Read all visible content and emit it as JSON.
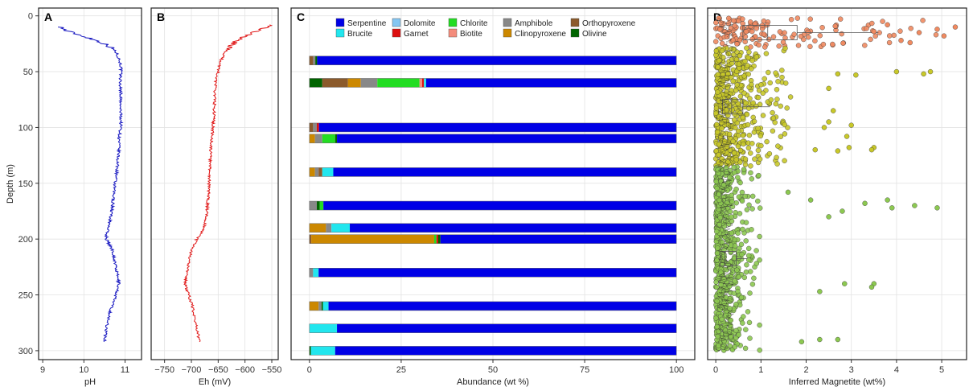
{
  "figure": {
    "width": 1210,
    "height": 486
  },
  "chart_data": [
    {
      "panel": "A",
      "type": "line",
      "xlabel": "pH",
      "ylabel": "Depth (m)",
      "xlim": [
        8.9,
        11.4
      ],
      "ylim": [
        308,
        -7
      ],
      "xticks": [
        "9",
        "10",
        "11"
      ],
      "yticks": [
        "0",
        "50",
        "100",
        "150",
        "200",
        "250",
        "300"
      ],
      "series": [
        {
          "color": "#1515c0",
          "depth": [
            10,
            13,
            16,
            19,
            22,
            25,
            28,
            31,
            34,
            38,
            45,
            50,
            60,
            70,
            80,
            90,
            100,
            110,
            120,
            130,
            140,
            150,
            160,
            170,
            180,
            190,
            195,
            200,
            205,
            210,
            220,
            230,
            240,
            250,
            260,
            270,
            280,
            292
          ],
          "values": [
            9.45,
            9.55,
            9.8,
            10.05,
            10.3,
            10.5,
            10.65,
            10.75,
            10.8,
            10.85,
            10.9,
            10.9,
            10.88,
            10.9,
            10.88,
            10.9,
            10.9,
            10.85,
            10.85,
            10.82,
            10.8,
            10.75,
            10.72,
            10.7,
            10.65,
            10.6,
            10.55,
            10.55,
            10.62,
            10.7,
            10.75,
            10.8,
            10.85,
            10.78,
            10.68,
            10.6,
            10.55,
            10.5
          ]
        }
      ]
    },
    {
      "panel": "B",
      "type": "line",
      "xlabel": "Eh (mV)",
      "xlim": [
        -775,
        -538
      ],
      "ylim": [
        308,
        -7
      ],
      "xticks": [
        "−750",
        "−700",
        "−650",
        "−600",
        "−550"
      ],
      "series": [
        {
          "color": "#e01515",
          "depth": [
            8,
            10,
            12,
            15,
            18,
            22,
            26,
            30,
            35,
            40,
            50,
            60,
            70,
            80,
            90,
            100,
            110,
            120,
            130,
            140,
            150,
            160,
            170,
            180,
            190,
            195,
            200,
            210,
            220,
            230,
            240,
            250,
            260,
            270,
            280,
            292
          ],
          "values": [
            -548,
            -555,
            -570,
            -585,
            -600,
            -615,
            -625,
            -632,
            -640,
            -645,
            -650,
            -655,
            -656,
            -657,
            -658,
            -660,
            -662,
            -664,
            -665,
            -666,
            -667,
            -668,
            -670,
            -672,
            -676,
            -682,
            -690,
            -700,
            -705,
            -708,
            -712,
            -705,
            -698,
            -694,
            -690,
            -685
          ]
        }
      ]
    },
    {
      "panel": "C",
      "type": "bar",
      "orientation": "horizontal",
      "stacked": true,
      "xlabel": "Abundance (wt %)",
      "xlim": [
        -5,
        105
      ],
      "ylim": [
        308,
        -7
      ],
      "xticks": [
        "0",
        "25",
        "50",
        "75",
        "100"
      ],
      "legend": {
        "position": "top-center",
        "columns": 4
      },
      "minerals": [
        {
          "name": "Serpentine",
          "color": "#0000e6"
        },
        {
          "name": "Brucite",
          "color": "#22e6ee"
        },
        {
          "name": "Dolomite",
          "color": "#84c6f2"
        },
        {
          "name": "Garnet",
          "color": "#dd1010"
        },
        {
          "name": "Chlorite",
          "color": "#22dd22"
        },
        {
          "name": "Biotite",
          "color": "#f48c7c"
        },
        {
          "name": "Amphibole",
          "color": "#888888"
        },
        {
          "name": "Clinopyroxene",
          "color": "#cc8800"
        },
        {
          "name": "Orthopyroxene",
          "color": "#8b5a2b"
        },
        {
          "name": "Olivine",
          "color": "#006400"
        }
      ],
      "samples": [
        {
          "depth": 40,
          "parts": [
            [
              "Orthopyroxene",
              1
            ],
            [
              "Amphibole",
              0.6
            ],
            [
              "Olivine",
              0.5
            ],
            [
              "Serpentine",
              97.9
            ]
          ]
        },
        {
          "depth": 60,
          "parts": [
            [
              "Olivine",
              3.5
            ],
            [
              "Orthopyroxene",
              7
            ],
            [
              "Clinopyroxene",
              3.5
            ],
            [
              "Amphibole",
              4.5
            ],
            [
              "Chlorite",
              11.5
            ],
            [
              "Biotite",
              0.7
            ],
            [
              "Garnet",
              0.5
            ],
            [
              "Brucite",
              0.6
            ],
            [
              "Serpentine",
              68.2
            ]
          ]
        },
        {
          "depth": 100,
          "parts": [
            [
              "Orthopyroxene",
              1
            ],
            [
              "Amphibole",
              1
            ],
            [
              "Garnet",
              0.6
            ],
            [
              "Serpentine",
              97.4
            ]
          ]
        },
        {
          "depth": 110,
          "parts": [
            [
              "Clinopyroxene",
              1.5
            ],
            [
              "Amphibole",
              2
            ],
            [
              "Chlorite",
              3.5
            ],
            [
              "Olivine",
              0.5
            ],
            [
              "Serpentine",
              92.5
            ]
          ]
        },
        {
          "depth": 140,
          "parts": [
            [
              "Clinopyroxene",
              1.5
            ],
            [
              "Amphibole",
              1
            ],
            [
              "Orthopyroxene",
              1
            ],
            [
              "Brucite",
              3
            ],
            [
              "Serpentine",
              93.5
            ]
          ]
        },
        {
          "depth": 170,
          "parts": [
            [
              "Amphibole",
              2
            ],
            [
              "Olivine",
              0.8
            ],
            [
              "Chlorite",
              1
            ],
            [
              "Serpentine",
              96.2
            ]
          ]
        },
        {
          "depth": 190,
          "parts": [
            [
              "Clinopyroxene",
              4.5
            ],
            [
              "Amphibole",
              1.5
            ],
            [
              "Brucite",
              5
            ],
            [
              "Serpentine",
              89
            ]
          ]
        },
        {
          "depth": 200,
          "parts": [
            [
              "Orthopyroxene",
              0.5
            ],
            [
              "Clinopyroxene",
              33.5
            ],
            [
              "Chlorite",
              0.6
            ],
            [
              "Garnet",
              0.5
            ],
            [
              "Olivine",
              0.6
            ],
            [
              "Serpentine",
              64.3
            ]
          ]
        },
        {
          "depth": 230,
          "parts": [
            [
              "Amphibole",
              1
            ],
            [
              "Brucite",
              1.5
            ],
            [
              "Serpentine",
              97.5
            ]
          ]
        },
        {
          "depth": 260,
          "parts": [
            [
              "Clinopyroxene",
              2.5
            ],
            [
              "Amphibole",
              0.8
            ],
            [
              "Olivine",
              0.4
            ],
            [
              "Brucite",
              1.5
            ],
            [
              "Serpentine",
              94.8
            ]
          ]
        },
        {
          "depth": 280,
          "parts": [
            [
              "Brucite",
              7.5
            ],
            [
              "Serpentine",
              92.5
            ]
          ]
        },
        {
          "depth": 300,
          "parts": [
            [
              "Olivine",
              0.4
            ],
            [
              "Brucite",
              6.6
            ],
            [
              "Serpentine",
              93
            ]
          ]
        }
      ]
    },
    {
      "panel": "D",
      "type": "scatter",
      "xlabel": "Inferred Magnetite (wt%)",
      "xlim": [
        -0.18,
        5.55
      ],
      "ylim": [
        308,
        -7
      ],
      "xticks": [
        "0",
        "1",
        "2",
        "3",
        "4",
        "5"
      ],
      "zones": [
        {
          "depth": [
            2,
            28
          ],
          "color": "#f08a60",
          "median": 1.15,
          "q1": 0.6,
          "q3": 1.8,
          "whisker_max": 3.6
        },
        {
          "depth": [
            28,
            135
          ],
          "color": "#c8c829",
          "median": 0.35,
          "q1": 0.15,
          "q3": 0.6,
          "whisker_max": 1.2
        },
        {
          "depth": [
            135,
            300
          ],
          "color": "#8cc850",
          "median": 0.2,
          "q1": 0.1,
          "q3": 0.45,
          "whisker_max": 0.7
        }
      ],
      "outlier_points": [
        [
          5.3,
          10
        ],
        [
          4.9,
          12
        ],
        [
          5.05,
          18
        ],
        [
          4.5,
          15
        ],
        [
          4.1,
          22
        ],
        [
          3.8,
          8
        ],
        [
          4.3,
          24
        ],
        [
          3.5,
          14
        ],
        [
          4.75,
          50
        ],
        [
          4.6,
          52
        ],
        [
          4.0,
          50
        ],
        [
          3.1,
          53
        ],
        [
          2.7,
          52
        ],
        [
          2.5,
          65
        ],
        [
          2.6,
          85
        ],
        [
          2.5,
          95
        ],
        [
          2.4,
          100
        ],
        [
          3.0,
          98
        ],
        [
          2.9,
          108
        ],
        [
          3.5,
          118
        ],
        [
          3.45,
          120
        ],
        [
          2.95,
          118
        ],
        [
          2.7,
          121
        ],
        [
          2.2,
          120
        ],
        [
          1.6,
          158
        ],
        [
          3.8,
          165
        ],
        [
          4.9,
          172
        ],
        [
          4.4,
          170
        ],
        [
          3.9,
          172
        ],
        [
          3.3,
          168
        ],
        [
          2.8,
          175
        ],
        [
          2.5,
          180
        ],
        [
          2.1,
          165
        ],
        [
          3.5,
          240
        ],
        [
          3.45,
          243
        ],
        [
          2.85,
          240
        ],
        [
          2.3,
          247
        ],
        [
          2.7,
          290
        ],
        [
          2.3,
          290
        ],
        [
          1.9,
          292
        ]
      ]
    }
  ]
}
